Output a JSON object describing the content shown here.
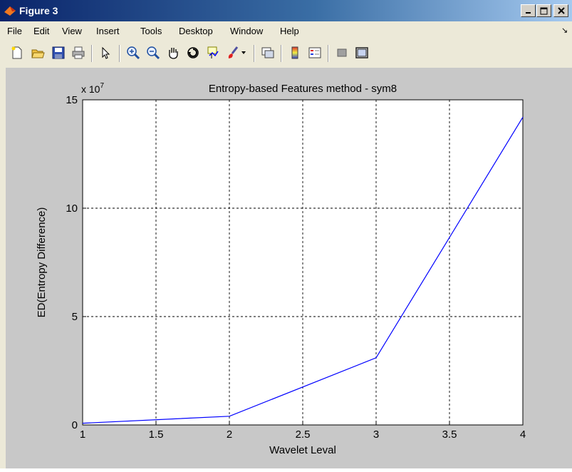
{
  "window": {
    "title": "Figure 3"
  },
  "menu": {
    "items": [
      "File",
      "Edit",
      "View",
      "Insert",
      "Tools",
      "Desktop",
      "Window",
      "Help"
    ]
  },
  "toolbar": {
    "icons": [
      "new-file-icon",
      "open-folder-icon",
      "save-icon",
      "print-icon",
      "pointer-icon",
      "zoom-in-icon",
      "zoom-out-icon",
      "pan-hand-icon",
      "rotate-3d-icon",
      "data-cursor-icon",
      "brush-icon",
      "dropdown-arrow-icon",
      "link-plot-icon",
      "colorbar-icon",
      "legend-icon",
      "hide-plot-tools-icon",
      "show-plot-tools-icon"
    ]
  },
  "chart_data": {
    "type": "line",
    "title": "Entropy-based Features method - sym8",
    "xlabel": "Wavelet Leval",
    "ylabel": "ED(Entropy Difference)",
    "y_exponent_label": "x 10",
    "y_exponent_power": "7",
    "xlim": [
      1,
      4
    ],
    "ylim": [
      0,
      15
    ],
    "xticks": [
      "1",
      "1.5",
      "2",
      "2.5",
      "3",
      "3.5",
      "4"
    ],
    "yticks": [
      "0",
      "5",
      "10",
      "15"
    ],
    "xtick_values": [
      1,
      1.5,
      2,
      2.5,
      3,
      3.5,
      4
    ],
    "ytick_values": [
      0,
      5,
      10,
      15
    ],
    "grid": true,
    "series": [
      {
        "color": "#0000ff",
        "x": [
          1,
          2,
          3,
          4
        ],
        "values": [
          0.08,
          0.4,
          3.1,
          14.2
        ]
      }
    ]
  }
}
